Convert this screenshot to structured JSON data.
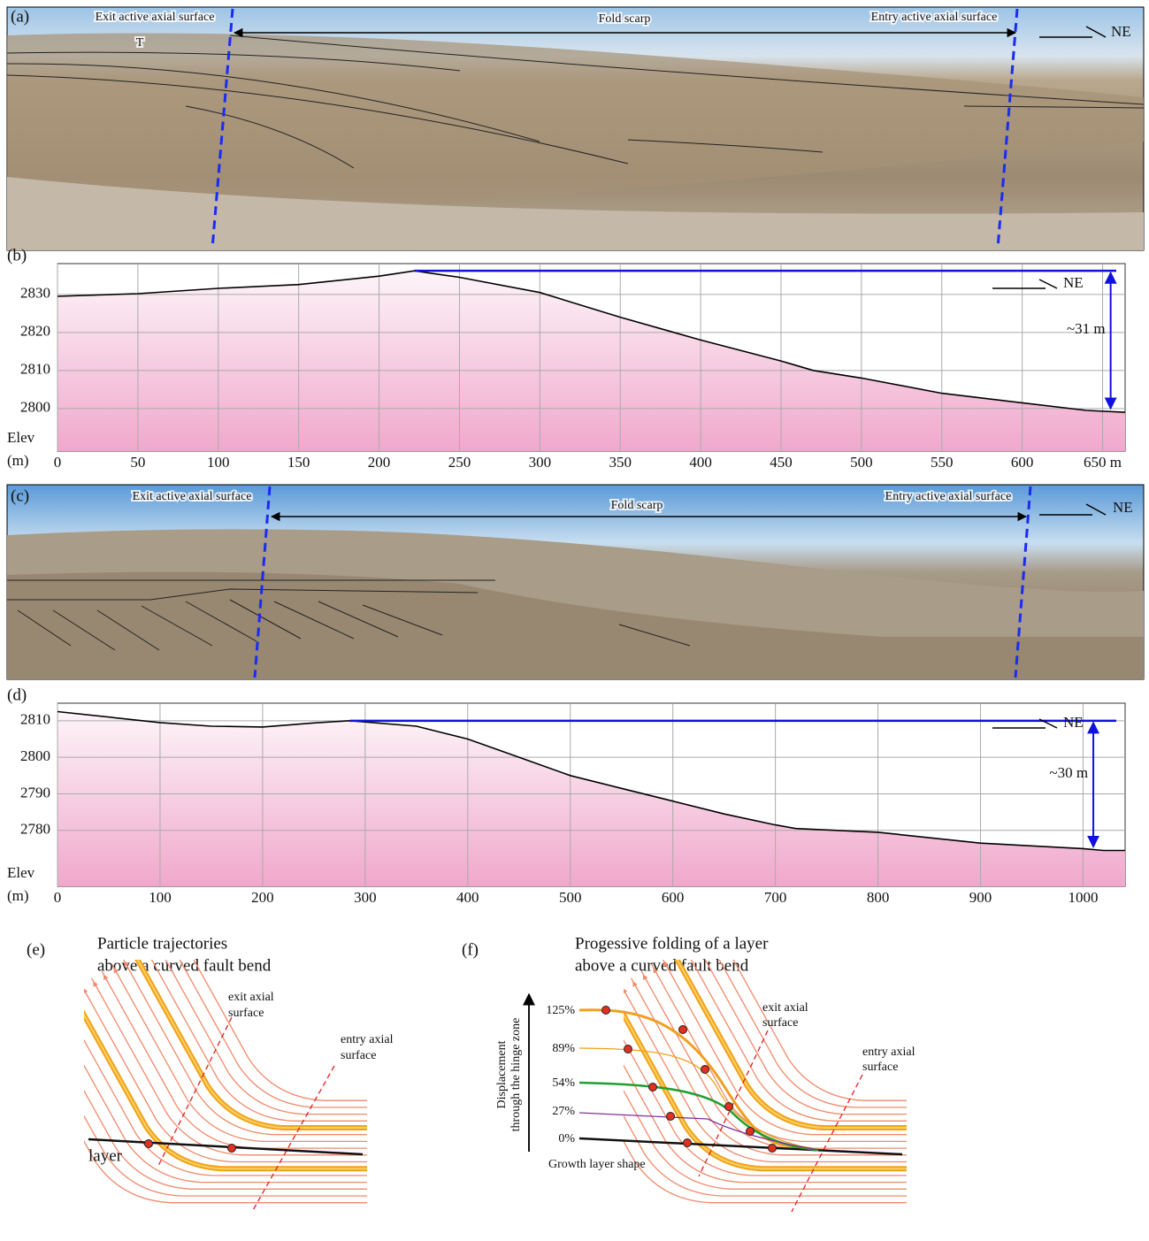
{
  "panels": {
    "a": {
      "label": "(a)",
      "exit": "Exit active axial surface",
      "scarp": "Fold scarp",
      "entry": "Entry active axial surface",
      "north": "NE",
      "terrace": "T"
    },
    "c": {
      "label": "(c)",
      "exit": "Exit active axial surface",
      "scarp": "Fold scarp",
      "entry": "Entry active axial surface",
      "north": "NE"
    },
    "e": {
      "label": "(e)",
      "title": [
        "Particle trajectories",
        "above a curved fault bend"
      ],
      "exit": [
        "exit axial",
        "surface"
      ],
      "entry": [
        "entry axial",
        "surface"
      ],
      "layer": "layer"
    },
    "f": {
      "label": "(f)",
      "title": [
        "Progessive folding of a layer",
        "above a curved fault bend"
      ],
      "axis": [
        "Displacement",
        "through the hinge zone"
      ],
      "steps": [
        "125%",
        "89%",
        "54%",
        "27%",
        "0%"
      ],
      "growth": "Growth layer shape",
      "exit": [
        "exit axial",
        "surface"
      ],
      "entry": [
        "entry axial",
        "surface"
      ]
    }
  },
  "chart_data": [
    {
      "type": "area",
      "panel": "(b)",
      "ylabel": [
        "Elev",
        "(m)"
      ],
      "direction": "NE",
      "color": "#000000",
      "grid": true,
      "x": [
        0,
        50,
        100,
        150,
        200,
        222,
        250,
        300,
        350,
        400,
        450,
        470,
        500,
        550,
        600,
        640,
        664
      ],
      "values": [
        2829.5,
        2830.2,
        2831.6,
        2832.6,
        2834.8,
        2836.2,
        2834.5,
        2830.5,
        2824,
        2818,
        2812.5,
        2810,
        2808,
        2804,
        2801.5,
        2799.5,
        2799
      ],
      "xlim": [
        0,
        664
      ],
      "ylim": [
        2788.8,
        2838.1
      ],
      "xticks": [
        0,
        50,
        100,
        150,
        200,
        250,
        300,
        350,
        400,
        450,
        500,
        550,
        600,
        {
          "value": 650,
          "label": "650 m"
        }
      ],
      "yticks": [
        2800,
        2810,
        2820,
        2830
      ],
      "relief": {
        "label": "~31 m",
        "from_x": 222,
        "x": 655,
        "top": 2836.2,
        "bottom": 2799.5
      }
    },
    {
      "type": "area",
      "panel": "(d)",
      "ylabel": [
        "Elev",
        "(m)"
      ],
      "direction": "NE",
      "color": "#000000",
      "grid": true,
      "x": [
        0,
        100,
        150,
        200,
        250,
        285,
        350,
        400,
        450,
        500,
        550,
        600,
        650,
        700,
        720,
        800,
        900,
        1000,
        1020,
        1041
      ],
      "values": [
        2812.5,
        2809.5,
        2808.5,
        2808.3,
        2809.4,
        2810,
        2808.5,
        2805,
        2800,
        2795,
        2791.5,
        2788,
        2784.5,
        2781.5,
        2780.5,
        2779.5,
        2776.5,
        2775,
        2774.5,
        2774.5
      ],
      "xlim": [
        0,
        1041
      ],
      "ylim": [
        2764.7,
        2814.8
      ],
      "xticks": [
        0,
        100,
        200,
        300,
        400,
        500,
        600,
        700,
        800,
        900,
        1000
      ],
      "yticks": [
        2780,
        2790,
        2800,
        2810
      ],
      "relief": {
        "label": "~30 m",
        "from_x": 285,
        "x": 1010,
        "top": 2810,
        "bottom": 2775
      }
    }
  ]
}
